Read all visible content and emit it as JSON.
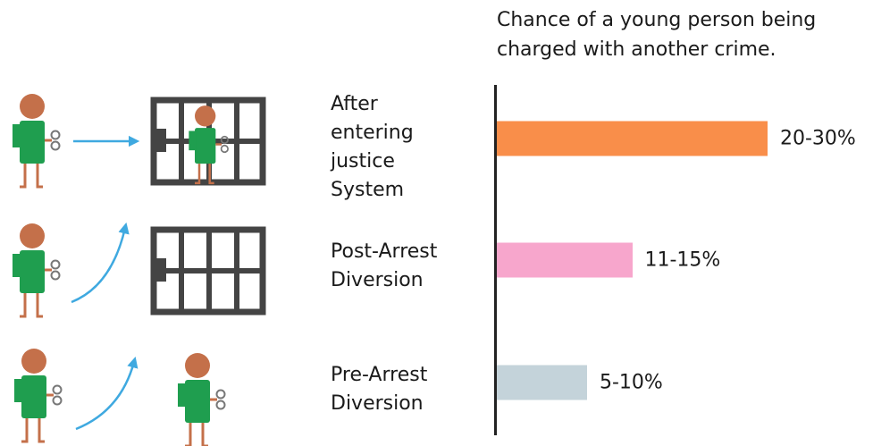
{
  "chart_data": {
    "type": "bar",
    "orientation": "horizontal",
    "title": "Chance of a young person being charged with another crime.",
    "categories": [
      "After entering justice System",
      "Post-Arrest Diversion",
      "Pre-Arrest Diversion"
    ],
    "values": [
      30,
      15,
      10
    ],
    "value_labels": [
      "20-30%",
      "11-15%",
      "5-10%"
    ],
    "colors": [
      "#f98e4a",
      "#f7a6cc",
      "#c4d3da"
    ]
  }
}
